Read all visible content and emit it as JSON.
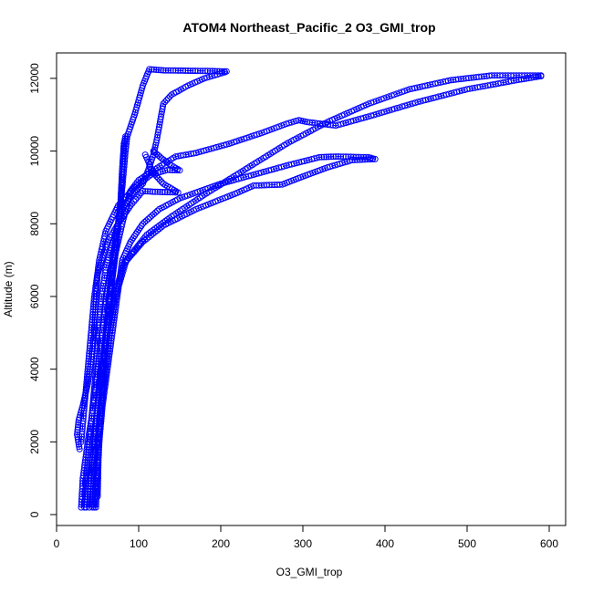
{
  "chart_data": {
    "type": "scatter",
    "title": "ATOM4 Northeast_Pacific_2 O3_GMI_trop",
    "xlabel": "O3_GMI_trop",
    "ylabel": "Altitude (m)",
    "xlim": [
      0,
      620
    ],
    "ylim": [
      -300,
      12700
    ],
    "x_ticks": [
      0,
      100,
      200,
      300,
      400,
      500,
      600
    ],
    "y_ticks": [
      0,
      2000,
      4000,
      6000,
      8000,
      10000,
      12000
    ],
    "grid": false,
    "legend": "none",
    "color": "#0000ff",
    "series": [
      {
        "values": [
          [
            30,
            200
          ],
          [
            32,
            1000
          ],
          [
            38,
            2000
          ],
          [
            45,
            3000
          ],
          [
            50,
            4000
          ],
          [
            55,
            5000
          ],
          [
            60,
            6000
          ],
          [
            68,
            7000
          ],
          [
            75,
            8000
          ],
          [
            80,
            9000
          ],
          [
            82,
            9500
          ],
          [
            84,
            10000
          ],
          [
            86,
            10400
          ],
          [
            95,
            11000
          ],
          [
            105,
            11800
          ],
          [
            113,
            12250
          ],
          [
            130,
            12220
          ],
          [
            160,
            12210
          ],
          [
            190,
            12200
          ],
          [
            207,
            12190
          ]
        ]
      },
      {
        "values": [
          [
            205,
            12170
          ],
          [
            180,
            12000
          ],
          [
            160,
            11800
          ],
          [
            140,
            11550
          ],
          [
            130,
            11300
          ],
          [
            126,
            10800
          ],
          [
            122,
            10300
          ],
          [
            118,
            9900
          ],
          [
            112,
            9500
          ],
          [
            105,
            9100
          ],
          [
            95,
            8900
          ],
          [
            88,
            8700
          ],
          [
            80,
            8400
          ],
          [
            70,
            7600
          ],
          [
            60,
            6800
          ],
          [
            55,
            6000
          ],
          [
            50,
            5000
          ],
          [
            48,
            4000
          ],
          [
            44,
            3000
          ],
          [
            40,
            2000
          ],
          [
            36,
            1000
          ],
          [
            34,
            200
          ]
        ]
      },
      {
        "values": [
          [
            40,
            200
          ],
          [
            42,
            1000
          ],
          [
            50,
            2000
          ],
          [
            55,
            3000
          ],
          [
            60,
            4000
          ],
          [
            65,
            5000
          ],
          [
            72,
            6000
          ],
          [
            85,
            7000
          ],
          [
            110,
            7700
          ],
          [
            140,
            8200
          ],
          [
            180,
            8800
          ],
          [
            230,
            9500
          ],
          [
            280,
            10200
          ],
          [
            330,
            10800
          ],
          [
            380,
            11300
          ],
          [
            430,
            11700
          ],
          [
            480,
            11950
          ],
          [
            530,
            12080
          ],
          [
            560,
            12080
          ],
          [
            590,
            12080
          ]
        ]
      },
      {
        "values": [
          [
            590,
            12060
          ],
          [
            560,
            11950
          ],
          [
            500,
            11700
          ],
          [
            440,
            11350
          ],
          [
            380,
            10950
          ],
          [
            340,
            10700
          ],
          [
            305,
            10800
          ],
          [
            295,
            10850
          ],
          [
            280,
            10750
          ],
          [
            250,
            10500
          ],
          [
            210,
            10200
          ],
          [
            170,
            9950
          ],
          [
            145,
            9850
          ],
          [
            120,
            9500
          ],
          [
            100,
            9200
          ],
          [
            90,
            8900
          ],
          [
            80,
            8000
          ],
          [
            70,
            7000
          ],
          [
            65,
            6000
          ],
          [
            60,
            5000
          ],
          [
            55,
            4000
          ],
          [
            50,
            3000
          ],
          [
            47,
            2000
          ],
          [
            45,
            1000
          ],
          [
            44,
            200
          ]
        ]
      },
      {
        "values": [
          [
            36,
            200
          ],
          [
            40,
            1000
          ],
          [
            46,
            2000
          ],
          [
            50,
            3000
          ],
          [
            56,
            4000
          ],
          [
            62,
            5000
          ],
          [
            70,
            6000
          ],
          [
            82,
            6900
          ],
          [
            105,
            7500
          ],
          [
            130,
            7950
          ],
          [
            170,
            8400
          ],
          [
            220,
            8850
          ],
          [
            240,
            9050
          ],
          [
            275,
            9080
          ],
          [
            300,
            9300
          ],
          [
            330,
            9550
          ],
          [
            360,
            9750
          ],
          [
            388,
            9780
          ],
          [
            380,
            9830
          ],
          [
            340,
            9850
          ],
          [
            320,
            9830
          ],
          [
            280,
            9600
          ],
          [
            240,
            9350
          ],
          [
            200,
            9100
          ],
          [
            175,
            8900
          ],
          [
            150,
            8700
          ],
          [
            125,
            8400
          ],
          [
            105,
            8000
          ],
          [
            90,
            7500
          ],
          [
            80,
            7000
          ],
          [
            74,
            6000
          ],
          [
            68,
            5000
          ],
          [
            62,
            4000
          ],
          [
            56,
            3000
          ],
          [
            52,
            2000
          ],
          [
            48,
            1000
          ],
          [
            46,
            200
          ]
        ]
      },
      {
        "values": [
          [
            28,
            1800
          ],
          [
            25,
            2200
          ],
          [
            27,
            2600
          ],
          [
            32,
            3000
          ],
          [
            38,
            3600
          ],
          [
            42,
            4200
          ],
          [
            46,
            5000
          ],
          [
            48,
            6000
          ],
          [
            50,
            6600
          ],
          [
            55,
            7000
          ],
          [
            62,
            7500
          ],
          [
            75,
            8000
          ],
          [
            90,
            8500
          ],
          [
            105,
            8900
          ],
          [
            120,
            8880
          ],
          [
            135,
            8870
          ],
          [
            148,
            8860
          ],
          [
            130,
            9100
          ],
          [
            120,
            9350
          ],
          [
            115,
            9500
          ],
          [
            112,
            9700
          ],
          [
            108,
            9900
          ]
        ]
      },
      {
        "values": [
          [
            30,
            2000
          ],
          [
            34,
            3000
          ],
          [
            38,
            4000
          ],
          [
            42,
            5000
          ],
          [
            46,
            6000
          ],
          [
            52,
            7000
          ],
          [
            60,
            7800
          ],
          [
            75,
            8500
          ],
          [
            95,
            9000
          ],
          [
            115,
            9350
          ],
          [
            135,
            9480
          ],
          [
            150,
            9470
          ],
          [
            140,
            9600
          ],
          [
            128,
            9800
          ],
          [
            118,
            10000
          ]
        ]
      },
      {
        "values": [
          [
            48,
            200
          ],
          [
            49,
            800
          ],
          [
            50,
            1500
          ],
          [
            52,
            2500
          ],
          [
            55,
            3500
          ],
          [
            58,
            4500
          ],
          [
            62,
            5500
          ],
          [
            66,
            6500
          ],
          [
            72,
            7500
          ],
          [
            78,
            8500
          ],
          [
            80,
            9500
          ],
          [
            82,
            10200
          ],
          [
            84,
            10400
          ],
          [
            82,
            10100
          ],
          [
            80,
            9500
          ],
          [
            78,
            8600
          ],
          [
            75,
            8000
          ],
          [
            72,
            7200
          ],
          [
            68,
            6500
          ],
          [
            64,
            5500
          ],
          [
            60,
            4500
          ],
          [
            56,
            3500
          ],
          [
            53,
            2500
          ],
          [
            51,
            1500
          ],
          [
            50,
            500
          ]
        ]
      }
    ]
  }
}
